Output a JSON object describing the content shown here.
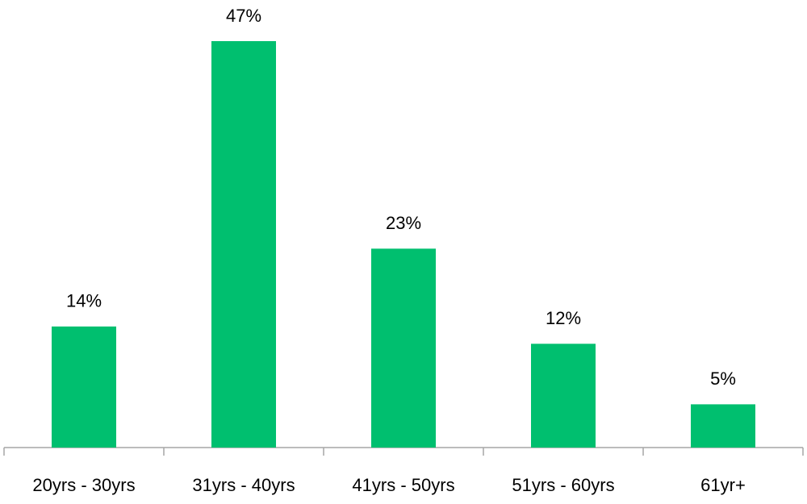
{
  "chart_data": {
    "type": "bar",
    "categories": [
      "20yrs - 30yrs",
      "31yrs - 40yrs",
      "41yrs - 50yrs",
      "51yrs - 60yrs",
      "61yr+"
    ],
    "values": [
      14,
      47,
      23,
      12,
      5
    ],
    "value_labels": [
      "14%",
      "47%",
      "23%",
      "12%",
      "5%"
    ],
    "color": "#00bf6f"
  }
}
